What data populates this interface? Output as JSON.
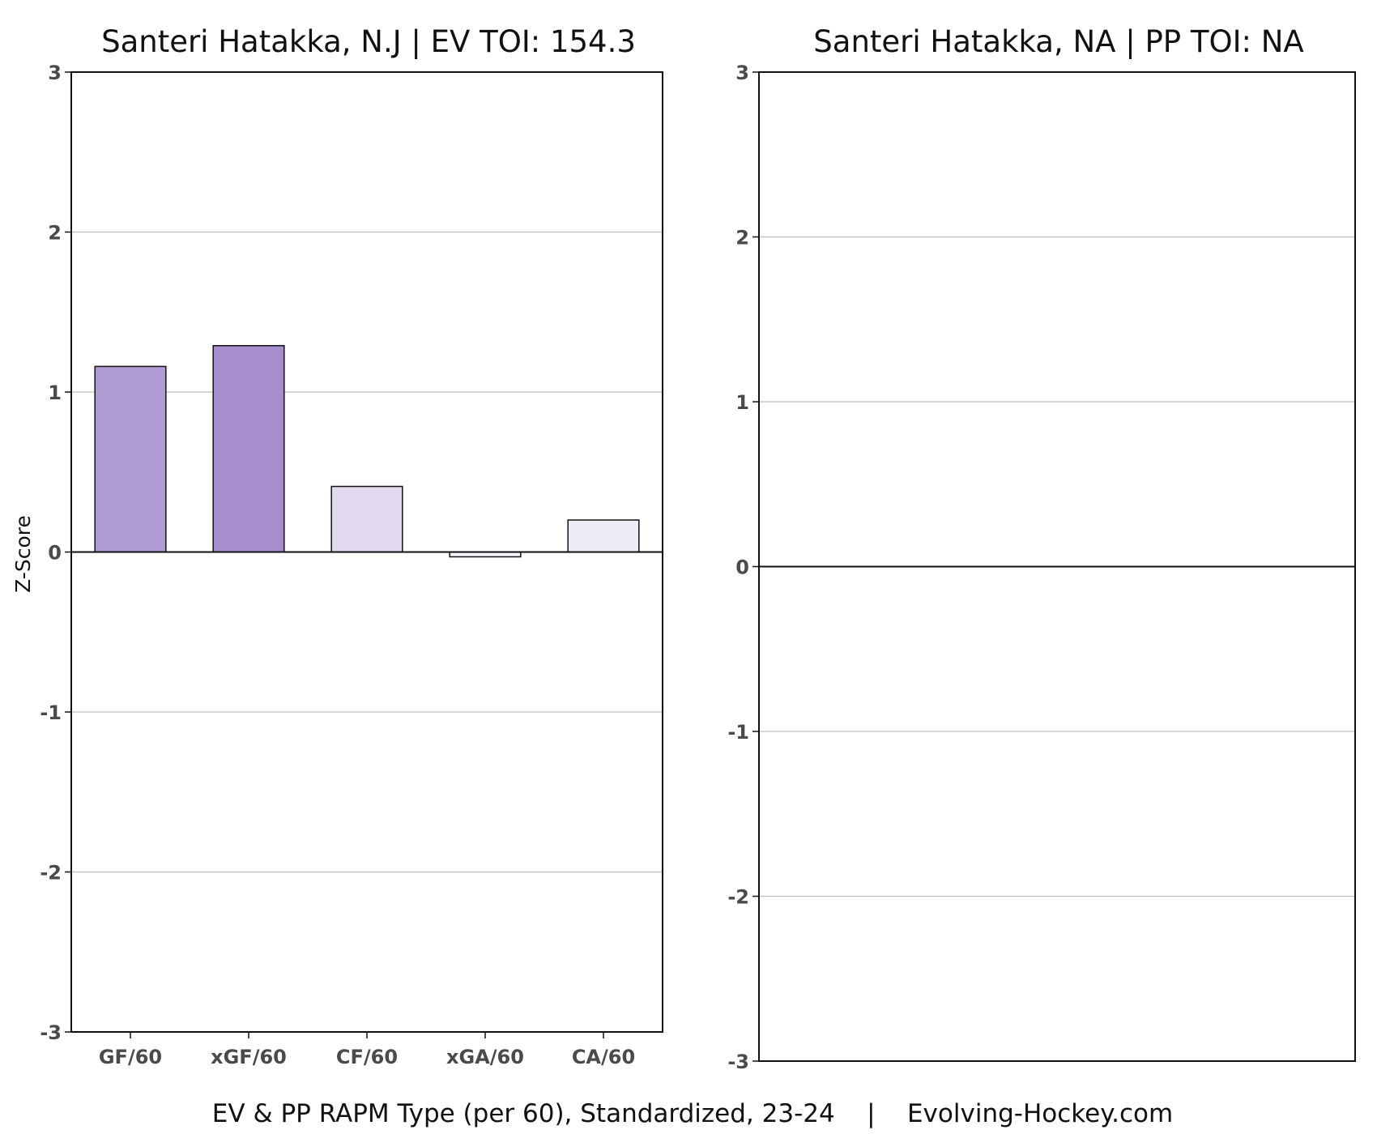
{
  "chart_data": [
    {
      "type": "bar",
      "title": "Santeri Hatakka, N.J  |  EV TOI: 154.3",
      "ylabel": "Z-Score",
      "ylim": [
        -3,
        3
      ],
      "yticks": [
        "-3",
        "-2",
        "-1",
        "0",
        "1",
        "2",
        "3"
      ],
      "grid": true,
      "categories": [
        "GF/60",
        "xGF/60",
        "CF/60",
        "xGA/60",
        "CA/60"
      ],
      "values": [
        1.16,
        1.29,
        0.41,
        -0.03,
        0.2
      ],
      "colors": [
        "#b09bd3",
        "#a68ecd",
        "#e2daef",
        "#f6f4fa",
        "#eeeaf6"
      ]
    },
    {
      "type": "bar",
      "title": "Santeri Hatakka, NA  |  PP TOI: NA",
      "ylim": [
        -3,
        3
      ],
      "yticks": [
        "-3",
        "-2",
        "-1",
        "0",
        "1",
        "2",
        "3"
      ],
      "grid": true,
      "categories": [],
      "values": []
    }
  ],
  "footer": "EV & PP RAPM Type (per 60), Standardized, 23-24    |    Evolving-Hockey.com"
}
